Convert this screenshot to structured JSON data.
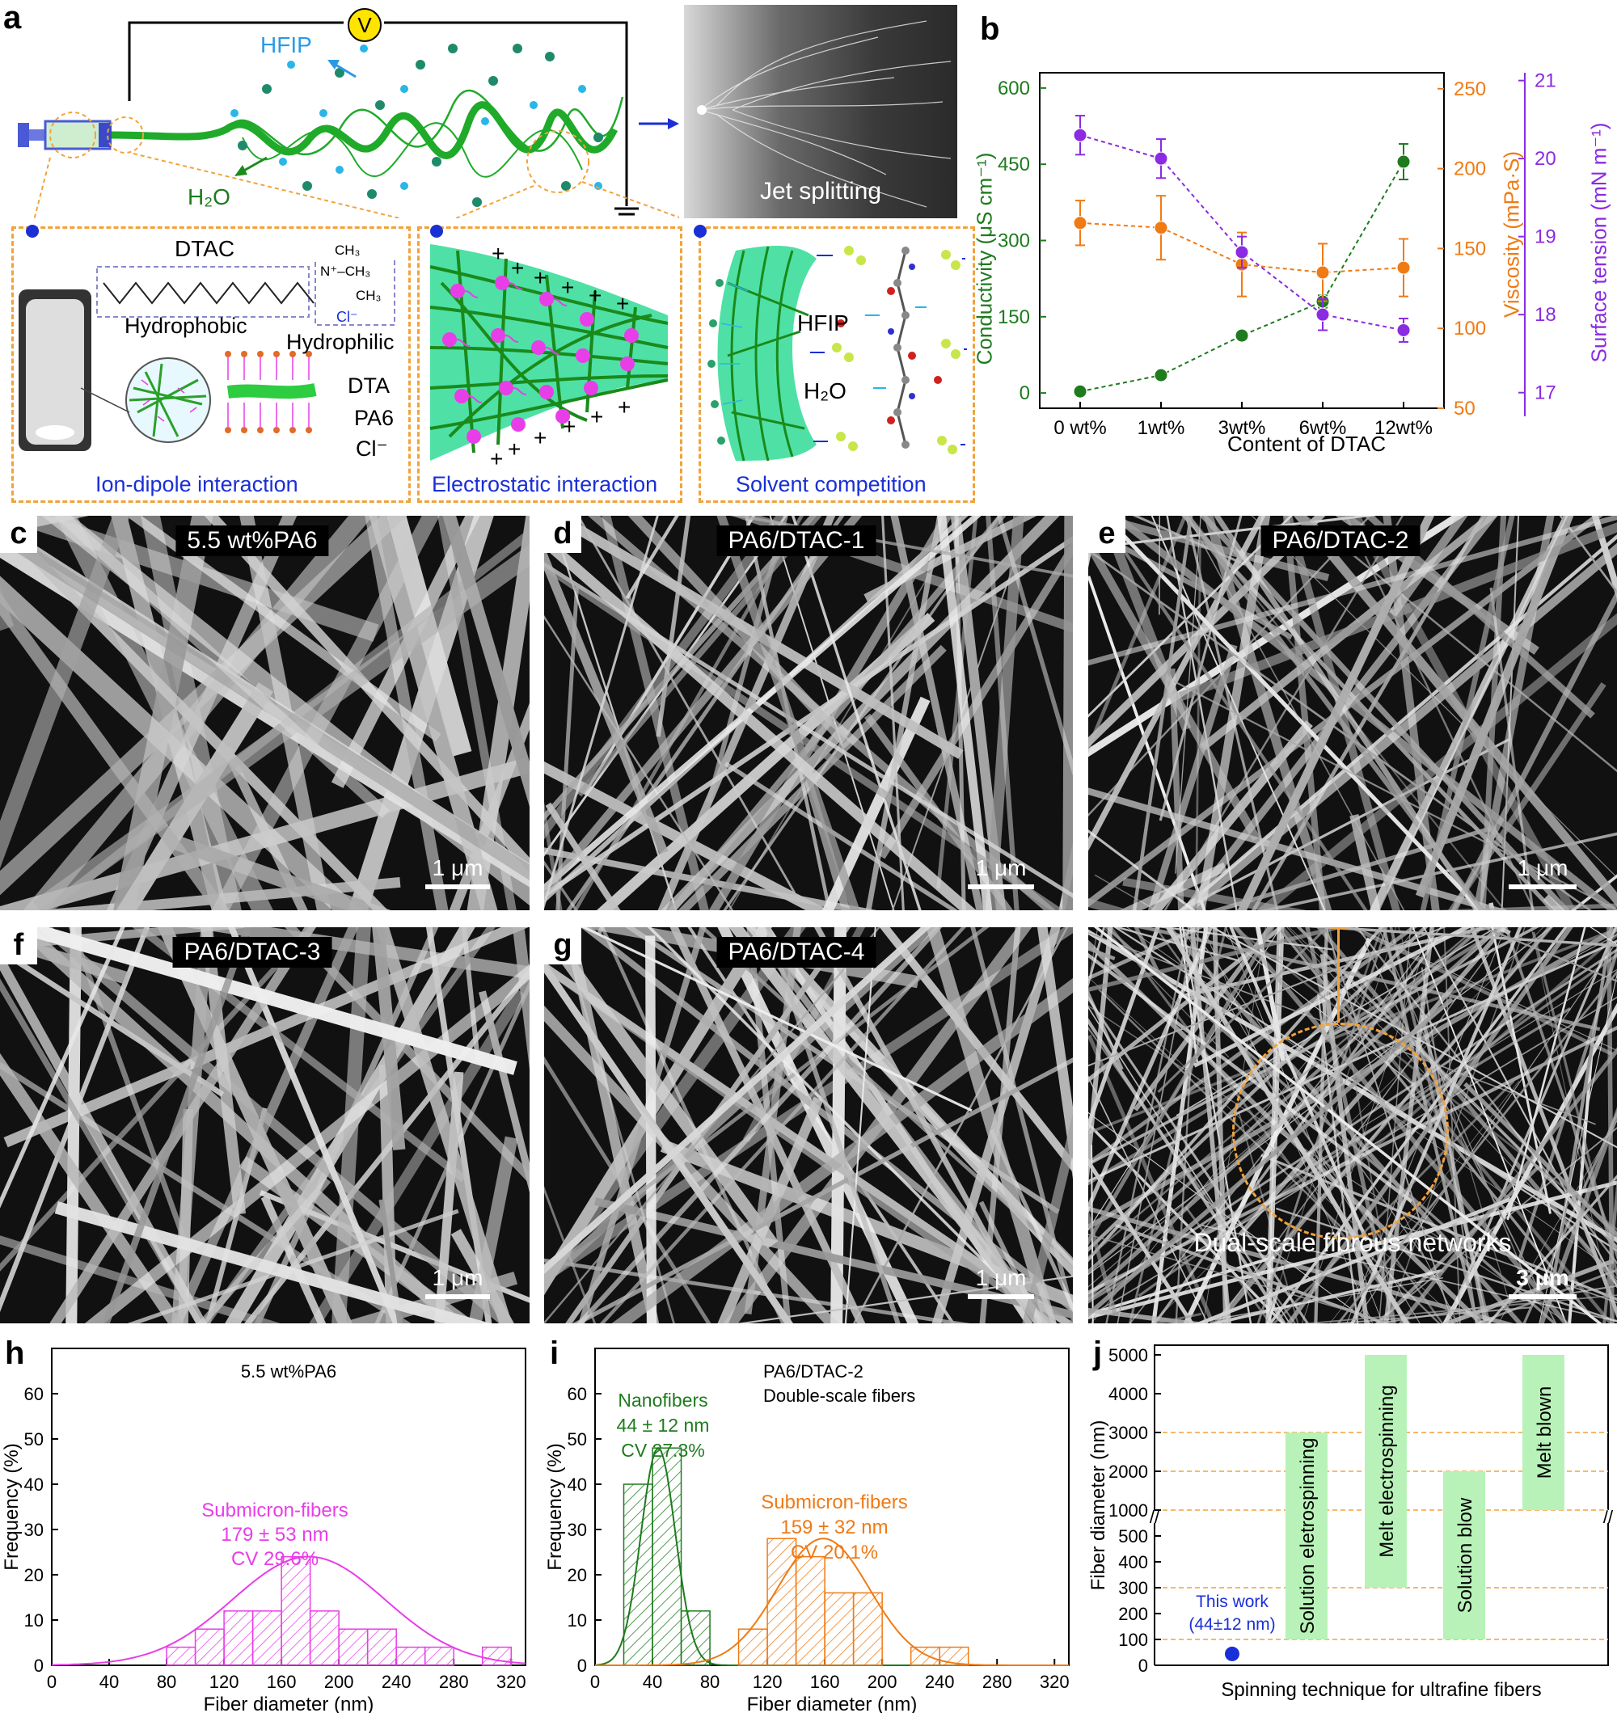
{
  "panels": {
    "a": "a",
    "b": "b",
    "c": "c",
    "d": "d",
    "e": "e",
    "f": "f",
    "g": "g",
    "h": "h",
    "i": "i",
    "j": "j"
  },
  "schematic": {
    "voltage": "V",
    "hfip": "HFIP",
    "h2o": "H₂O",
    "jet_photo_label": "Jet splitting",
    "box1": {
      "dtac": "DTAC",
      "hydrophobic": "Hydrophobic",
      "hydrophilic": "Hydrophilic",
      "ch3_top": "CH₃",
      "n_ch3": "N⁺–CH₃",
      "ch3_bottom": "CH₃",
      "cl": "Cl⁻",
      "dta": "DTA",
      "pa6": "PA6",
      "cl2": "Cl⁻",
      "caption": "Ion-dipole interaction"
    },
    "box2": {
      "plus": "+",
      "caption": "Electrostatic interaction"
    },
    "box3": {
      "hfip": "HFIP",
      "h2o": "H₂O",
      "caption": "Solvent competition"
    }
  },
  "sem": {
    "c": {
      "title": "5.5 wt%PA6",
      "scale": "1 μm"
    },
    "d": {
      "title": "PA6/DTAC-1",
      "scale": "1 μm"
    },
    "e": {
      "title": "PA6/DTAC-2",
      "scale": "1 μm"
    },
    "f": {
      "title": "PA6/DTAC-3",
      "scale": "1 μm"
    },
    "g": {
      "title": "PA6/DTAC-4",
      "scale": "1 μm"
    },
    "zoom": {
      "title": "Dual-scale fibrous networks",
      "scale": "3 μm"
    }
  },
  "colors": {
    "green": "#1e7b1e",
    "orange": "#f07a14",
    "purple": "#8b2be2",
    "magenta": "#e83ee8",
    "blue": "#1a2fd6"
  },
  "chart_data": [
    {
      "panel": "b",
      "type": "line",
      "categories": [
        "0 wt%",
        "1wt%",
        "3wt%",
        "6wt%",
        "12wt%"
      ],
      "xlabel": "Content of DTAC",
      "series": [
        {
          "name": "Conductivity (μS cm⁻¹)",
          "axis": "left",
          "ylim": [
            -30,
            630
          ],
          "ticks": [
            0,
            150,
            300,
            450,
            600
          ],
          "values": [
            3,
            35,
            113,
            180,
            455
          ],
          "errors": [
            6,
            6,
            6,
            12,
            35
          ],
          "color": "#1e7b1e"
        },
        {
          "name": "Viscosity (mPa·S)",
          "axis": "right1",
          "ylim": [
            50,
            260
          ],
          "ticks": [
            50,
            100,
            150,
            200,
            250
          ],
          "values": [
            166,
            163,
            140,
            135,
            138
          ],
          "errors": [
            14,
            20,
            20,
            18,
            18
          ],
          "color": "#f07a14"
        },
        {
          "name": "Surface tension (mN m⁻¹)",
          "axis": "right2",
          "ylim": [
            16.8,
            21.1
          ],
          "ticks": [
            17,
            18,
            19,
            20,
            21
          ],
          "values": [
            20.3,
            20.0,
            18.8,
            18.0,
            17.8
          ],
          "errors": [
            0.25,
            0.25,
            0.2,
            0.2,
            0.15
          ],
          "color": "#8b2be2"
        }
      ]
    },
    {
      "panel": "h",
      "type": "bar",
      "title": "5.5 wt%PA6",
      "xlabel": "Fiber diameter (nm)",
      "ylabel": "Frequency (%)",
      "xlim": [
        0,
        330
      ],
      "ylim": [
        0,
        70
      ],
      "xticks": [
        0,
        40,
        80,
        120,
        160,
        200,
        240,
        280,
        320
      ],
      "yticks": [
        0,
        10,
        20,
        30,
        40,
        50,
        60
      ],
      "bin_width": 20,
      "bins": [
        {
          "x": 80,
          "y": 4
        },
        {
          "x": 100,
          "y": 8
        },
        {
          "x": 120,
          "y": 12
        },
        {
          "x": 140,
          "y": 12
        },
        {
          "x": 160,
          "y": 24
        },
        {
          "x": 180,
          "y": 12
        },
        {
          "x": 200,
          "y": 8
        },
        {
          "x": 220,
          "y": 8
        },
        {
          "x": 240,
          "y": 4
        },
        {
          "x": 260,
          "y": 4
        },
        {
          "x": 300,
          "y": 4
        }
      ],
      "fit": {
        "mean": 179,
        "sd": 53,
        "peak": 24
      },
      "annotation": [
        "Submicron-fibers",
        "179 ± 53 nm",
        "CV 29.6%"
      ],
      "color": "#e83ee8"
    },
    {
      "panel": "i",
      "type": "bar",
      "title": "PA6/DTAC-2",
      "subtitle": "Double-scale fibers",
      "xlabel": "Fiber diameter (nm)",
      "ylabel": "Frequency (%)",
      "xlim": [
        0,
        330
      ],
      "ylim": [
        0,
        70
      ],
      "xticks": [
        0,
        40,
        80,
        120,
        160,
        200,
        240,
        280,
        320
      ],
      "yticks": [
        0,
        10,
        20,
        30,
        40,
        50,
        60
      ],
      "bin_width": 20,
      "series": [
        {
          "name": "Nanofibers",
          "color": "#1e7b1e",
          "bins": [
            {
              "x": 20,
              "y": 40
            },
            {
              "x": 40,
              "y": 48
            },
            {
              "x": 60,
              "y": 12
            }
          ],
          "fit": {
            "mean": 44,
            "sd": 12,
            "peak": 48
          },
          "annotation": [
            "Nanofibers",
            "44 ± 12 nm",
            "CV 27.3%"
          ]
        },
        {
          "name": "Submicron-fibers",
          "color": "#f07a14",
          "bins": [
            {
              "x": 100,
              "y": 8
            },
            {
              "x": 120,
              "y": 28
            },
            {
              "x": 140,
              "y": 24
            },
            {
              "x": 160,
              "y": 16
            },
            {
              "x": 180,
              "y": 16
            },
            {
              "x": 220,
              "y": 4
            },
            {
              "x": 240,
              "y": 4
            }
          ],
          "fit": {
            "mean": 159,
            "sd": 32,
            "peak": 28
          },
          "annotation": [
            "Submicron-fibers",
            "159 ± 32 nm",
            "CV 20.1%"
          ]
        }
      ]
    },
    {
      "panel": "j",
      "type": "bar",
      "xlabel": "Spinning technique for ultrafine fibers",
      "ylabel": "Fiber diameter (nm)",
      "lower_ticks": [
        0,
        100,
        200,
        300,
        400,
        500
      ],
      "upper_ticks": [
        1000,
        2000,
        3000,
        4000,
        5000
      ],
      "ranges": [
        {
          "name": "Solution eletrospinning",
          "min": 100,
          "max": 3000
        },
        {
          "name": "Melt electrospinning",
          "min": 300,
          "max": 5000
        },
        {
          "name": "Solution blow",
          "min": 100,
          "max": 2000
        },
        {
          "name": "Melt blown",
          "min": 1000,
          "max": 5000
        }
      ],
      "point": {
        "label": [
          "This work",
          "(44±12 nm)"
        ],
        "value": 44
      },
      "reference_lines": [
        100,
        300,
        1000,
        2000,
        3000
      ]
    }
  ]
}
